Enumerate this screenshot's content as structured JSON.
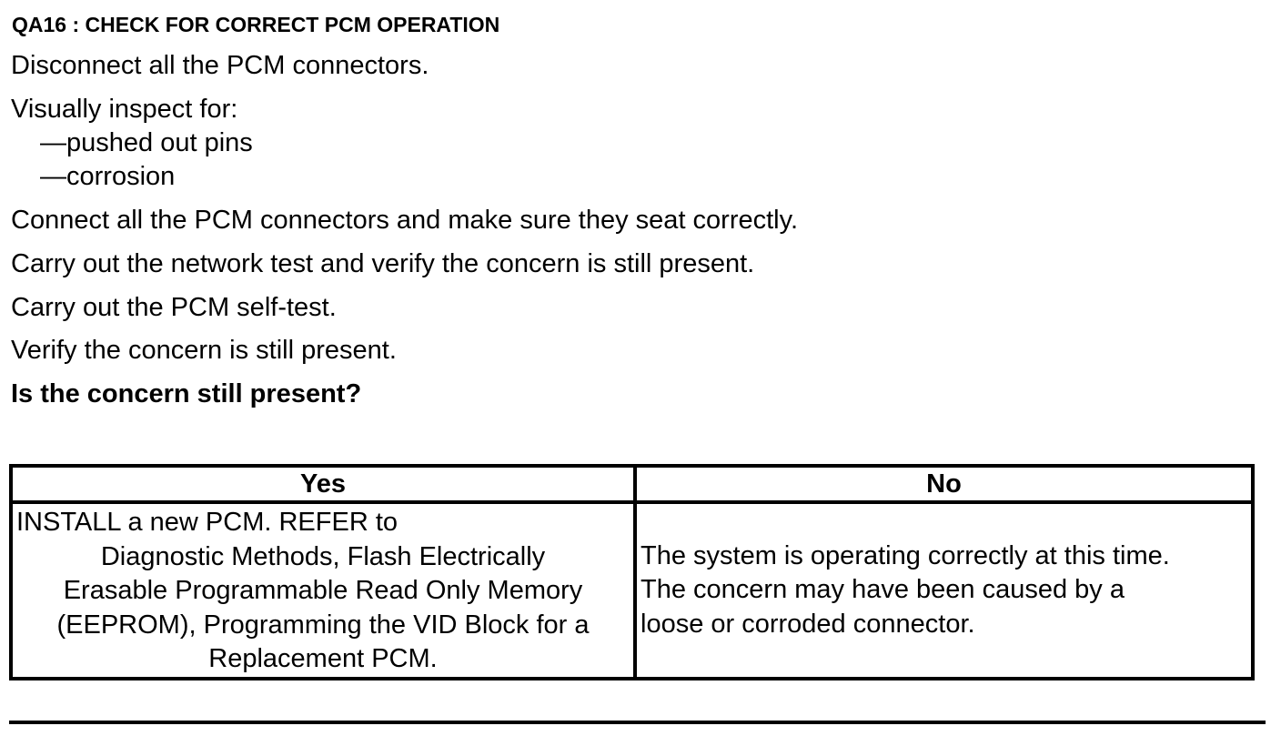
{
  "title": "QA16 : CHECK FOR CORRECT PCM OPERATION",
  "steps": [
    "Disconnect all the PCM connectors.",
    "Visually inspect for:",
    "—pushed out pins",
    "—corrosion",
    "Connect all the PCM connectors and make sure they seat correctly.",
    "Carry out the network test and verify the concern is still present.",
    "Carry out the PCM self-test.",
    "Verify the concern is still present."
  ],
  "question": "Is the concern still present?",
  "table": {
    "headers": [
      "Yes",
      "No"
    ],
    "yes_lines": [
      "INSTALL a new PCM.  REFER to",
      "Diagnostic Methods, Flash Electrically",
      "Erasable Programmable Read Only Memory",
      "(EEPROM), Programming the VID Block for a",
      "Replacement PCM."
    ],
    "no_lines": [
      "The system is operating correctly at this time.",
      "The concern may have been caused by a",
      "loose or corroded connector."
    ]
  }
}
